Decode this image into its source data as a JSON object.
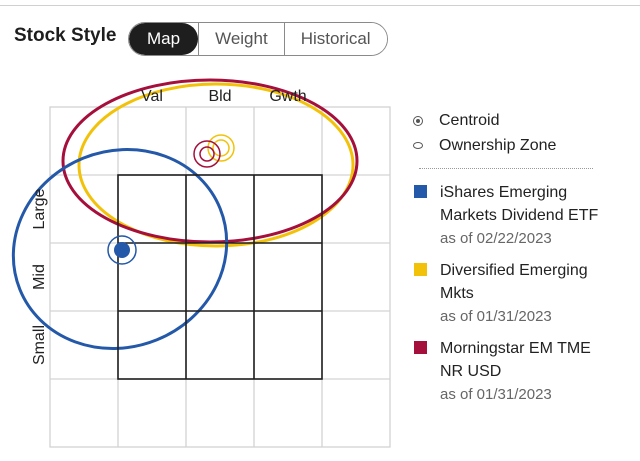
{
  "header": {
    "title": "Stock Style",
    "tabs": [
      {
        "label": "Map",
        "active": true
      },
      {
        "label": "Weight",
        "active": false
      },
      {
        "label": "Historical",
        "active": false
      }
    ]
  },
  "map": {
    "column_labels": [
      "Val",
      "Bld",
      "Gwth"
    ],
    "row_labels": [
      "Large",
      "Mid",
      "Small"
    ]
  },
  "legend": {
    "centroid_label": "Centroid",
    "zone_label": "Ownership Zone",
    "series": [
      {
        "name": "iShares Emerging Markets Dividend ETF",
        "date": "as of 02/22/2023",
        "color": "#2458a8"
      },
      {
        "name": "Diversified Emerging Mkts",
        "date": "as of 01/31/2023",
        "color": "#f2c20a"
      },
      {
        "name": "Morningstar EM TME NR USD",
        "date": "as of 01/31/2023",
        "color": "#a50f3c"
      }
    ]
  },
  "colors": {
    "grid_dark": "#1e1e1e",
    "grid_light": "#d3d3d3"
  }
}
